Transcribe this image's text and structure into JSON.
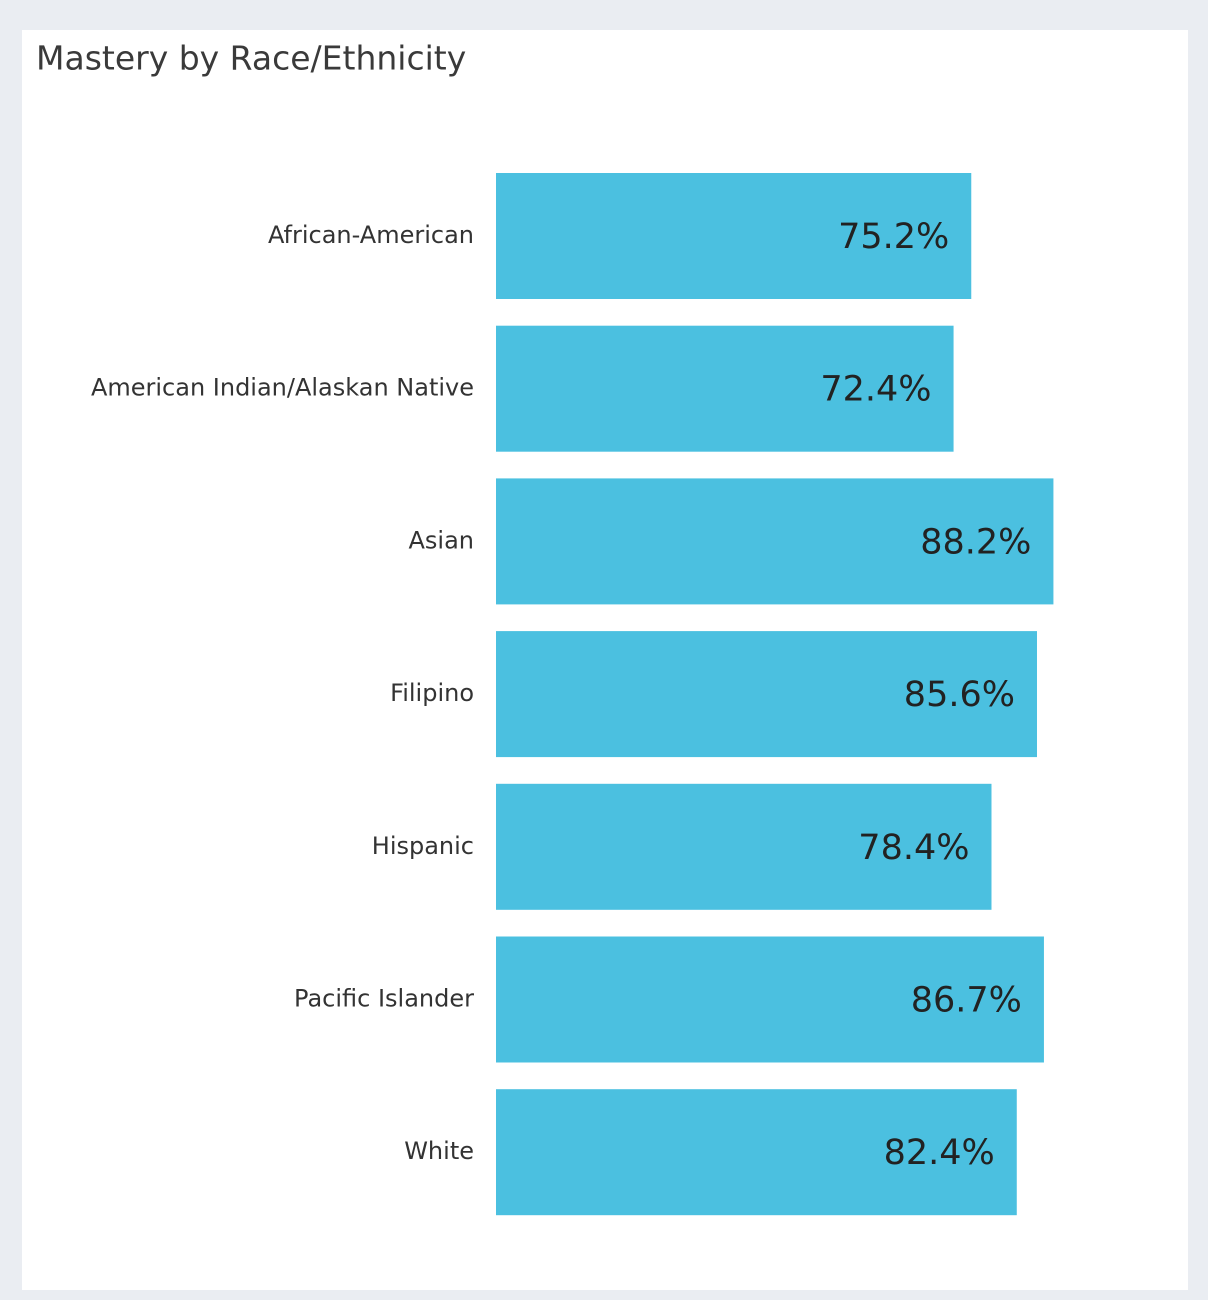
{
  "chart_data": {
    "type": "bar",
    "orientation": "horizontal",
    "title": "Mastery by Race/Ethnicity",
    "categories": [
      "African-American",
      "American Indian/Alaskan Native",
      "Asian",
      "Filipino",
      "Hispanic",
      "Pacific Islander",
      "White"
    ],
    "values": [
      75.2,
      72.4,
      88.2,
      85.6,
      78.4,
      86.7,
      82.4
    ],
    "value_labels": [
      "75.2%",
      "72.4%",
      "88.2%",
      "85.6%",
      "78.4%",
      "86.7%",
      "82.4%"
    ],
    "color": "#4bc0e0",
    "xlim": [
      0,
      100
    ]
  }
}
